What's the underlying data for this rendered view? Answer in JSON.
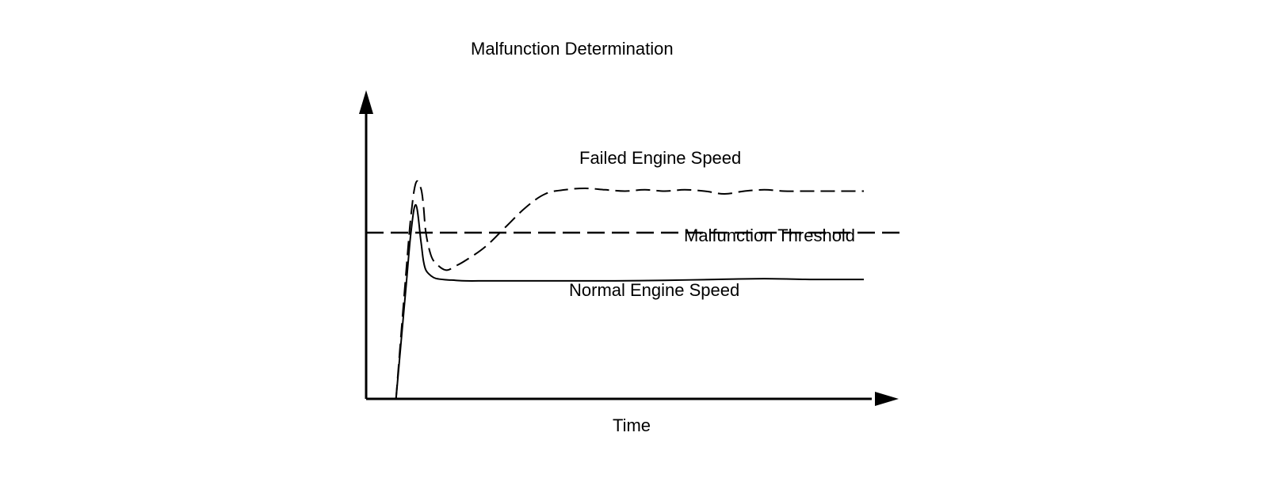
{
  "chart_data": {
    "type": "line",
    "title": "Malfunction Determination",
    "xlabel": "Time",
    "ylabel": "",
    "grid": false,
    "x_ticks": "none",
    "y_ticks": "none",
    "xlim": [
      0,
      100
    ],
    "ylim": [
      0,
      100
    ],
    "threshold": {
      "label": "Malfunction Threshold",
      "value": 60,
      "style": "dashed"
    },
    "series": [
      {
        "name": "Failed Engine Speed",
        "style": "dashed",
        "x": [
          6,
          8,
          9,
          10,
          11,
          11.5,
          12,
          13,
          14,
          16,
          18,
          20,
          24,
          28,
          32,
          36,
          40,
          44,
          48,
          52,
          56,
          60,
          64,
          68,
          72,
          76,
          80,
          84,
          88,
          92,
          96,
          100
        ],
        "y": [
          0,
          45,
          66,
          78,
          76,
          70,
          60,
          52,
          49,
          46.5,
          48,
          50,
          55,
          62,
          69,
          74,
          75.5,
          76,
          75.5,
          75,
          75.5,
          75,
          75.5,
          75,
          74,
          75,
          75.5,
          75,
          75,
          75,
          75,
          75
        ]
      },
      {
        "name": "Normal Engine Speed",
        "style": "solid",
        "x": [
          6,
          8,
          9,
          10,
          11,
          11.5,
          12,
          13,
          14,
          16,
          18,
          20,
          24,
          28,
          32,
          40,
          50,
          60,
          70,
          80,
          90,
          100
        ],
        "y": [
          0,
          40,
          60,
          70,
          57,
          50,
          46.5,
          44.5,
          43.5,
          43,
          42.8,
          42.6,
          42.6,
          42.6,
          42.6,
          42.6,
          42.6,
          42.8,
          43.1,
          43.4,
          43.1,
          43.1
        ]
      }
    ]
  }
}
